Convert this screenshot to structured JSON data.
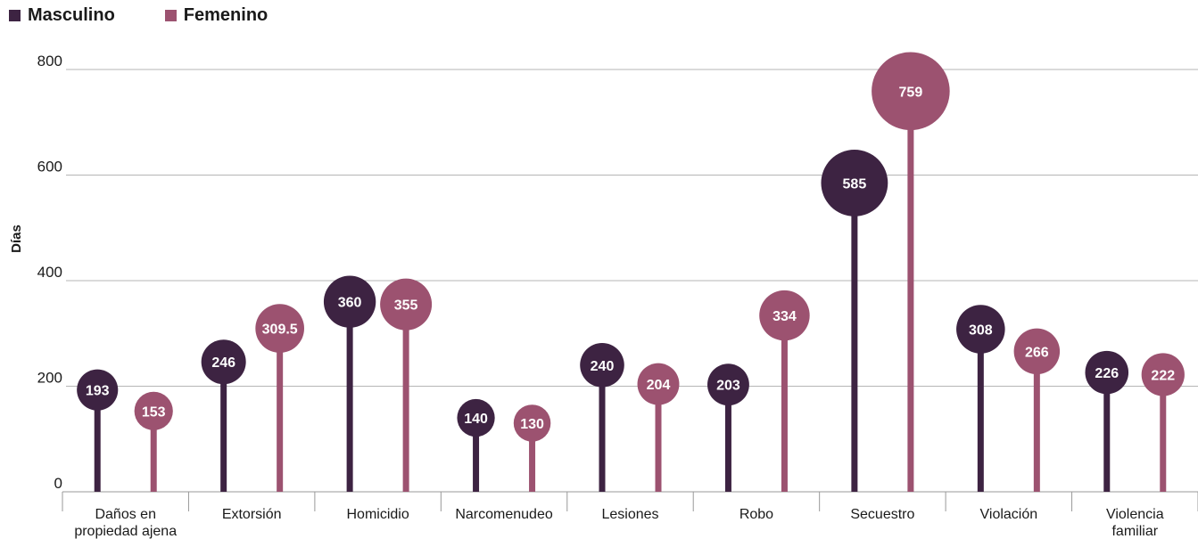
{
  "legend": {
    "masculino": "Masculino",
    "femenino": "Femenino"
  },
  "chart_data": {
    "type": "lollipop",
    "ylabel": "Días",
    "xlabel": "",
    "ylim": [
      0,
      800
    ],
    "yticks": [
      0,
      200,
      400,
      600,
      800
    ],
    "grid": true,
    "legend_position": "top-left",
    "categories": [
      [
        "Daños en",
        "propiedad ajena"
      ],
      [
        "Extorsión"
      ],
      [
        "Homicidio"
      ],
      [
        "Narcomenudeo"
      ],
      [
        "Lesiones"
      ],
      [
        "Robo"
      ],
      [
        "Secuestro"
      ],
      [
        "Violación"
      ],
      [
        "Violencia",
        "familiar"
      ]
    ],
    "series": [
      {
        "name": "Masculino",
        "color": "#3d2342",
        "values": [
          193,
          246,
          360,
          140,
          240,
          203,
          585,
          308,
          226
        ],
        "labels": [
          "193",
          "246",
          "360",
          "140",
          "240",
          "203",
          "585",
          "308",
          "226"
        ]
      },
      {
        "name": "Femenino",
        "color": "#9c5270",
        "values": [
          153,
          309.5,
          355,
          130,
          204,
          334,
          759,
          266,
          222
        ],
        "labels": [
          "153",
          "309.5",
          "355",
          "130",
          "204",
          "334",
          "759",
          "266",
          "222"
        ]
      }
    ]
  }
}
